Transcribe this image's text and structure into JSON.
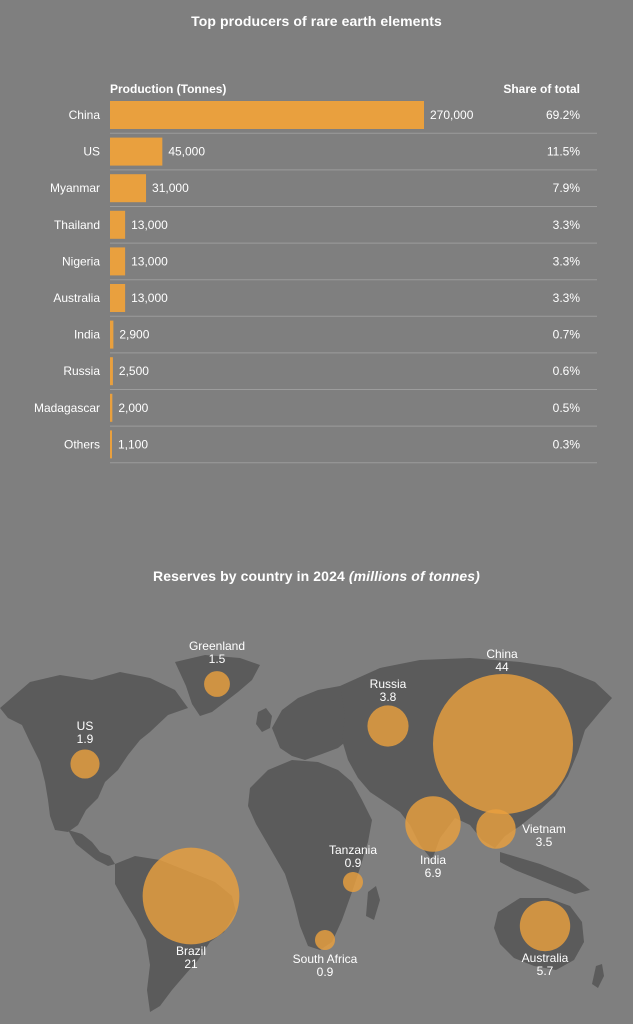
{
  "chart_data": [
    {
      "type": "bar",
      "title": "Top producers of rare earth elements",
      "value_header": "Production (Tonnes)",
      "share_header": "Share of total",
      "categories": [
        "China",
        "US",
        "Myanmar",
        "Thailand",
        "Nigeria",
        "Australia",
        "India",
        "Russia",
        "Madagascar",
        "Others"
      ],
      "values": [
        270000,
        45000,
        31000,
        13000,
        13000,
        13000,
        2900,
        2500,
        2000,
        1100
      ],
      "value_labels": [
        "270,000",
        "45,000",
        "31,000",
        "13,000",
        "13,000",
        "13,000",
        "2,900",
        "2,500",
        "2,000",
        "1,100"
      ],
      "shares": [
        "69.2%",
        "11.5%",
        "7.9%",
        "3.3%",
        "3.3%",
        "3.3%",
        "0.7%",
        "0.6%",
        "0.5%",
        "0.3%"
      ],
      "bar_color": "#e9a03e"
    },
    {
      "type": "bubble-map",
      "title": "Reserves by country in 2024",
      "title_note": "(millions of tonnes)",
      "points": [
        {
          "country": "Greenland",
          "value": 1.5,
          "label": "1.5"
        },
        {
          "country": "China",
          "value": 44,
          "label": "44"
        },
        {
          "country": "Russia",
          "value": 3.8,
          "label": "3.8"
        },
        {
          "country": "US",
          "value": 1.9,
          "label": "1.9"
        },
        {
          "country": "Vietnam",
          "value": 3.5,
          "label": "3.5"
        },
        {
          "country": "Tanzania",
          "value": 0.9,
          "label": "0.9"
        },
        {
          "country": "India",
          "value": 6.9,
          "label": "6.9"
        },
        {
          "country": "Brazil",
          "value": 21,
          "label": "21"
        },
        {
          "country": "Australia",
          "value": 5.7,
          "label": "5.7"
        },
        {
          "country": "South Africa",
          "value": 0.9,
          "label": "0.9"
        }
      ],
      "bubble_color": "#e9a03e",
      "land_color": "#5b5b5b"
    }
  ]
}
